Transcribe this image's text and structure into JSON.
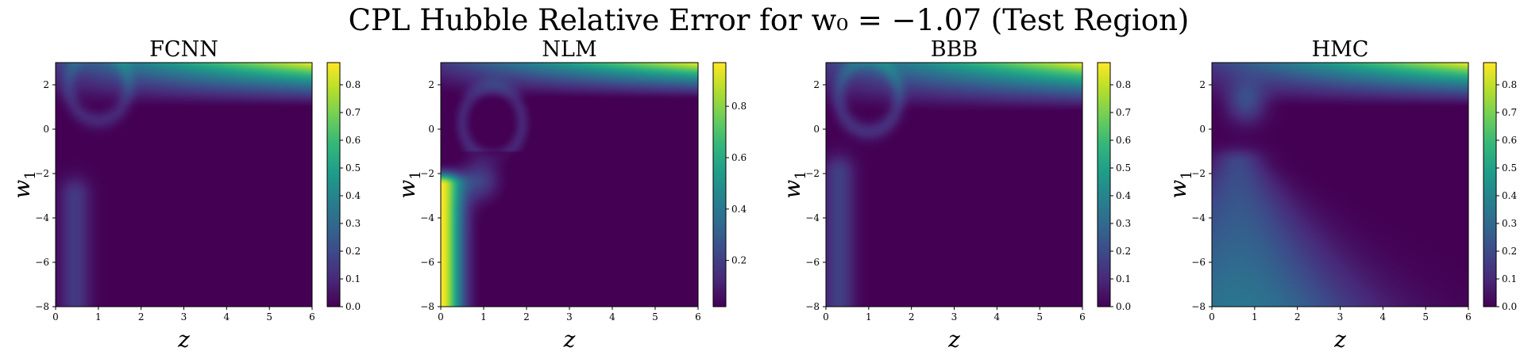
{
  "figure": {
    "suptitle": "CPL Hubble Relative Error for w₀ = −1.07 (Test Region)"
  },
  "colormap": [
    "#440154",
    "#482878",
    "#3e4989",
    "#31688e",
    "#26828e",
    "#1f9e89",
    "#35b779",
    "#6ece58",
    "#b5de2b",
    "#fde725"
  ],
  "chart_data": [
    {
      "type": "heatmap",
      "title": "FCNN",
      "xlabel": "z",
      "ylabel": "w",
      "ylabel_sub": "1",
      "xlim": [
        0,
        6
      ],
      "ylim": [
        -8,
        3
      ],
      "xticks": [
        "0",
        "1",
        "2",
        "3",
        "4",
        "5",
        "6"
      ],
      "yticks": [
        "2",
        "0",
        "−2",
        "−4",
        "−6",
        "−8"
      ],
      "colorbar": {
        "min": 0.0,
        "max": 0.88,
        "ticks": [
          "0.0",
          "0.1",
          "0.2",
          "0.3",
          "0.4",
          "0.5",
          "0.6",
          "0.7",
          "0.8"
        ]
      },
      "features": [
        {
          "kind": "top-band",
          "w1_start": 1.0,
          "peak": 0.88,
          "grows_with_z": true
        },
        {
          "kind": "vertical-stripe",
          "z_center": 0.45,
          "value": 0.15,
          "w1_range": [
            -8,
            -3
          ]
        },
        {
          "kind": "arc",
          "z_center": 1.0,
          "w1_center": 2.0,
          "value": 0.1
        }
      ]
    },
    {
      "type": "heatmap",
      "title": "NLM",
      "xlabel": "z",
      "ylabel": "w",
      "ylabel_sub": "1",
      "xlim": [
        0,
        6
      ],
      "ylim": [
        -8,
        3
      ],
      "xticks": [
        "0",
        "1",
        "2",
        "3",
        "4",
        "5",
        "6"
      ],
      "yticks": [
        "2",
        "0",
        "−2",
        "−4",
        "−6",
        "−8"
      ],
      "colorbar": {
        "min": 0.02,
        "max": 0.97,
        "ticks": [
          "0.2",
          "0.4",
          "0.6",
          "0.8"
        ]
      },
      "features": [
        {
          "kind": "top-band",
          "w1_start": 1.3,
          "peak": 0.97,
          "grows_with_z": true
        },
        {
          "kind": "left-edge",
          "z_max": 0.6,
          "value": 0.97,
          "w1_range": [
            -8,
            -2.5
          ]
        },
        {
          "kind": "blob",
          "z_center": 0.9,
          "w1_center": -2.3,
          "value": 0.2
        },
        {
          "kind": "arc",
          "z_center": 1.2,
          "w1_center": 0.3,
          "value": 0.12
        }
      ]
    },
    {
      "type": "heatmap",
      "title": "BBB",
      "xlabel": "z",
      "ylabel": "w",
      "ylabel_sub": "1",
      "xlim": [
        0,
        6
      ],
      "ylim": [
        -8,
        3
      ],
      "xticks": [
        "0",
        "1",
        "2",
        "3",
        "4",
        "5",
        "6"
      ],
      "yticks": [
        "2",
        "0",
        "−2",
        "−4",
        "−6",
        "−8"
      ],
      "colorbar": {
        "min": 0.0,
        "max": 0.88,
        "ticks": [
          "0.0",
          "0.1",
          "0.2",
          "0.3",
          "0.4",
          "0.5",
          "0.6",
          "0.7",
          "0.8"
        ]
      },
      "features": [
        {
          "kind": "top-band",
          "w1_start": 0.8,
          "peak": 0.88,
          "grows_with_z": true
        },
        {
          "kind": "vertical-stripe",
          "z_center": 0.3,
          "value": 0.17,
          "w1_range": [
            -8,
            -2
          ]
        },
        {
          "kind": "arc",
          "z_center": 1.0,
          "w1_center": 1.5,
          "value": 0.12
        }
      ]
    },
    {
      "type": "heatmap",
      "title": "HMC",
      "xlabel": "z",
      "ylabel": "w",
      "ylabel_sub": "1",
      "xlim": [
        0,
        6
      ],
      "ylim": [
        -8,
        3
      ],
      "xticks": [
        "0",
        "1",
        "2",
        "3",
        "4",
        "5",
        "6"
      ],
      "yticks": [
        "2",
        "0",
        "−2",
        "−4",
        "−6",
        "−8"
      ],
      "colorbar": {
        "min": 0.0,
        "max": 0.88,
        "ticks": [
          "0.0",
          "0.1",
          "0.2",
          "0.3",
          "0.4",
          "0.5",
          "0.6",
          "0.7",
          "0.8"
        ]
      },
      "features": [
        {
          "kind": "top-band",
          "w1_start": 1.0,
          "peak": 0.88,
          "grows_with_z": true
        },
        {
          "kind": "wedge",
          "z_center": 0.6,
          "value": 0.35,
          "w1_range": [
            -8,
            -1.5
          ]
        },
        {
          "kind": "blob",
          "z_center": 0.8,
          "w1_center": 1.2,
          "value": 0.2
        }
      ]
    }
  ]
}
